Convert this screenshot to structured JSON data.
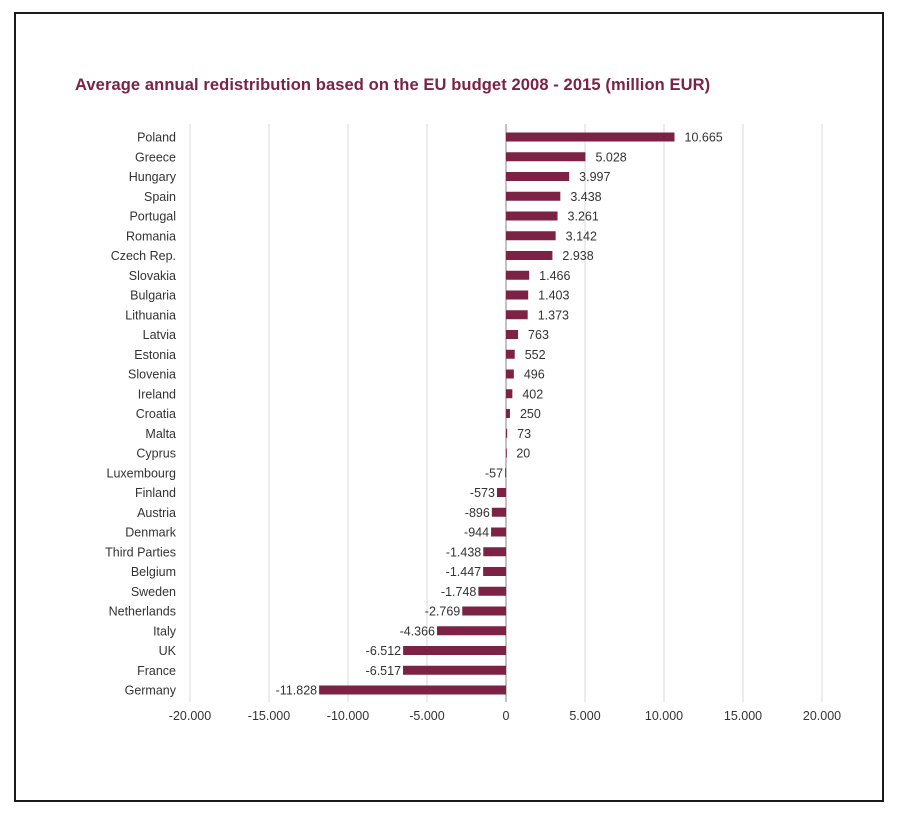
{
  "chart_data": {
    "type": "bar",
    "orientation": "horizontal",
    "title": "Average annual redistribution based on the EU budget 2008 - 2015 (million EUR)",
    "xlabel": "",
    "ylabel": "",
    "xlim": [
      -20000,
      20000
    ],
    "xticks": [
      -20000,
      -15000,
      -10000,
      -5000,
      0,
      5000,
      10000,
      15000,
      20000
    ],
    "xtick_labels": [
      "-20.000",
      "-15.000",
      "-10.000",
      "-5.000",
      "0",
      "5.000",
      "10.000",
      "15.000",
      "20.000"
    ],
    "grid": "vertical",
    "bar_color": "#7b2245",
    "categories": [
      "Poland",
      "Greece",
      "Hungary",
      "Spain",
      "Portugal",
      "Romania",
      "Czech Rep.",
      "Slovakia",
      "Bulgaria",
      "Lithuania",
      "Latvia",
      "Estonia",
      "Slovenia",
      "Ireland",
      "Croatia",
      "Malta",
      "Cyprus",
      "Luxembourg",
      "Finland",
      "Austria",
      "Denmark",
      "Third Parties",
      "Belgium",
      "Sweden",
      "Netherlands",
      "Italy",
      "UK",
      "France",
      "Germany"
    ],
    "values": [
      10665,
      5028,
      3997,
      3438,
      3261,
      3142,
      2938,
      1466,
      1403,
      1373,
      763,
      552,
      496,
      402,
      250,
      73,
      20,
      -57,
      -573,
      -896,
      -944,
      -1438,
      -1447,
      -1748,
      -2769,
      -4366,
      -6512,
      -6517,
      -11828
    ],
    "value_labels": [
      "10.665",
      "5.028",
      "3.997",
      "3.438",
      "3.261",
      "3.142",
      "2.938",
      "1.466",
      "1.403",
      "1.373",
      "763",
      "552",
      "496",
      "402",
      "250",
      "73",
      "20",
      "-57",
      "-573",
      "-896",
      "-944",
      "-1.438",
      "-1.447",
      "-1.748",
      "-2.769",
      "-4.366",
      "-6.512",
      "-6.517",
      "-11.828"
    ]
  }
}
